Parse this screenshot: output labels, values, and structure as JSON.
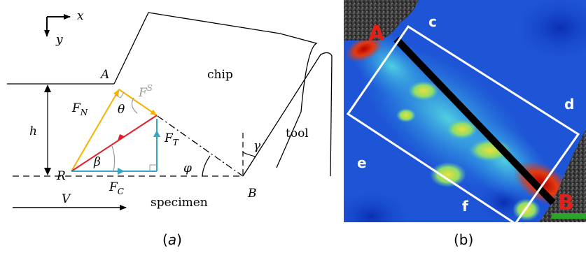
{
  "panel_a": {
    "axis_x": "x",
    "axis_y": "y",
    "point_A": "A",
    "point_B": "B",
    "point_R": "R",
    "chip_label": "chip",
    "tool_label": "tool",
    "specimen_label": "specimen",
    "velocity": "V",
    "depth": "h",
    "force_normal": {
      "main": "F",
      "sub": "N"
    },
    "force_shear": {
      "main": "F",
      "sup": "S"
    },
    "force_thrust": {
      "main": "F",
      "sub": "T"
    },
    "force_cutting": {
      "main": "F",
      "sub": "C"
    },
    "angle_theta": "θ",
    "angle_beta": "β",
    "angle_phi": "φ",
    "angle_gamma": "γ",
    "caption": {
      "open": "(",
      "letter": "a",
      "close": ")"
    },
    "colors": {
      "normal": "#f5b400",
      "resultant": "#e0202a",
      "component": "#3aa3c4",
      "shear": "#9a9a9a"
    }
  },
  "panel_b": {
    "label_A": "A",
    "label_B": "B",
    "label_c": "c",
    "label_d": "d",
    "label_e": "e",
    "label_f": "f",
    "caption": "(b)"
  }
}
